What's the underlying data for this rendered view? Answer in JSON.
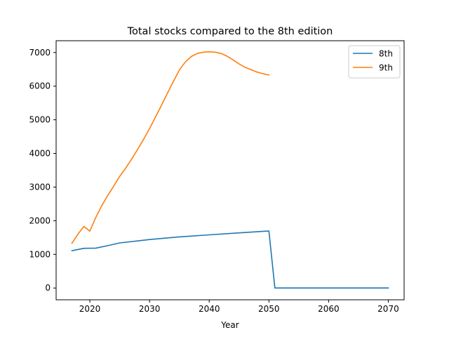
{
  "chart_data": {
    "type": "line",
    "title": "Total stocks compared to the 8th edition",
    "xlabel": "Year",
    "ylabel": "",
    "xlim": [
      2014.35,
      2072.65
    ],
    "ylim": [
      -350,
      7350
    ],
    "xticks": [
      2020,
      2030,
      2040,
      2050,
      2060,
      2070
    ],
    "yticks": [
      0,
      1000,
      2000,
      3000,
      4000,
      5000,
      6000,
      7000
    ],
    "grid": false,
    "legend_position": "top-right",
    "series": [
      {
        "name": "8th",
        "color": "#1f77b4",
        "points": [
          [
            2017,
            1110
          ],
          [
            2019,
            1180
          ],
          [
            2021,
            1185
          ],
          [
            2023,
            1260
          ],
          [
            2025,
            1340
          ],
          [
            2030,
            1440
          ],
          [
            2035,
            1520
          ],
          [
            2040,
            1580
          ],
          [
            2045,
            1640
          ],
          [
            2050,
            1695
          ],
          [
            2051,
            0
          ],
          [
            2060,
            0
          ],
          [
            2070,
            0
          ]
        ]
      },
      {
        "name": "9th",
        "color": "#ff7f0e",
        "points": [
          [
            2017,
            1330
          ],
          [
            2018,
            1600
          ],
          [
            2019,
            1830
          ],
          [
            2020,
            1690
          ],
          [
            2021,
            2100
          ],
          [
            2022,
            2450
          ],
          [
            2023,
            2750
          ],
          [
            2024,
            3030
          ],
          [
            2025,
            3320
          ],
          [
            2026,
            3560
          ],
          [
            2027,
            3830
          ],
          [
            2028,
            4120
          ],
          [
            2029,
            4420
          ],
          [
            2030,
            4740
          ],
          [
            2031,
            5080
          ],
          [
            2032,
            5430
          ],
          [
            2033,
            5790
          ],
          [
            2034,
            6140
          ],
          [
            2035,
            6480
          ],
          [
            2036,
            6720
          ],
          [
            2037,
            6880
          ],
          [
            2038,
            6970
          ],
          [
            2039,
            7010
          ],
          [
            2040,
            7020
          ],
          [
            2041,
            7010
          ],
          [
            2042,
            6970
          ],
          [
            2043,
            6890
          ],
          [
            2044,
            6780
          ],
          [
            2045,
            6660
          ],
          [
            2046,
            6560
          ],
          [
            2047,
            6490
          ],
          [
            2048,
            6420
          ],
          [
            2049,
            6370
          ],
          [
            2050,
            6330
          ]
        ]
      }
    ]
  }
}
